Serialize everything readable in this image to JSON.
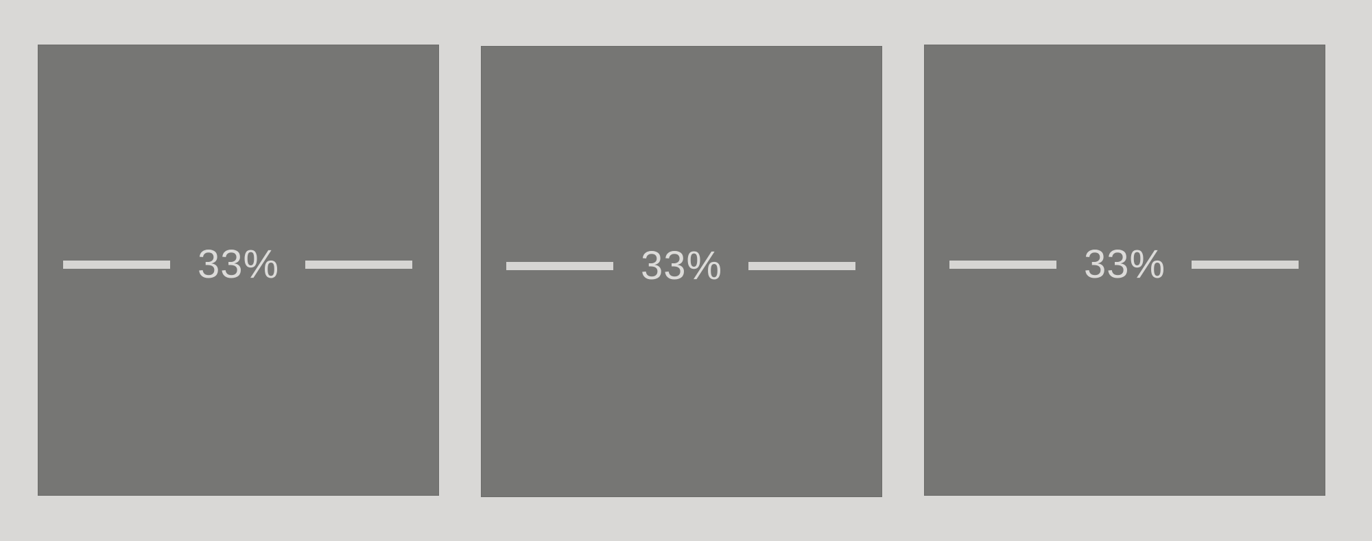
{
  "panels": [
    {
      "label": "33%"
    },
    {
      "label": "33%"
    },
    {
      "label": "33%"
    }
  ],
  "colors": {
    "background": "#d9d8d6",
    "panel": "#767674",
    "text": "#dcdbd9",
    "rule": "#d6d5d3"
  }
}
